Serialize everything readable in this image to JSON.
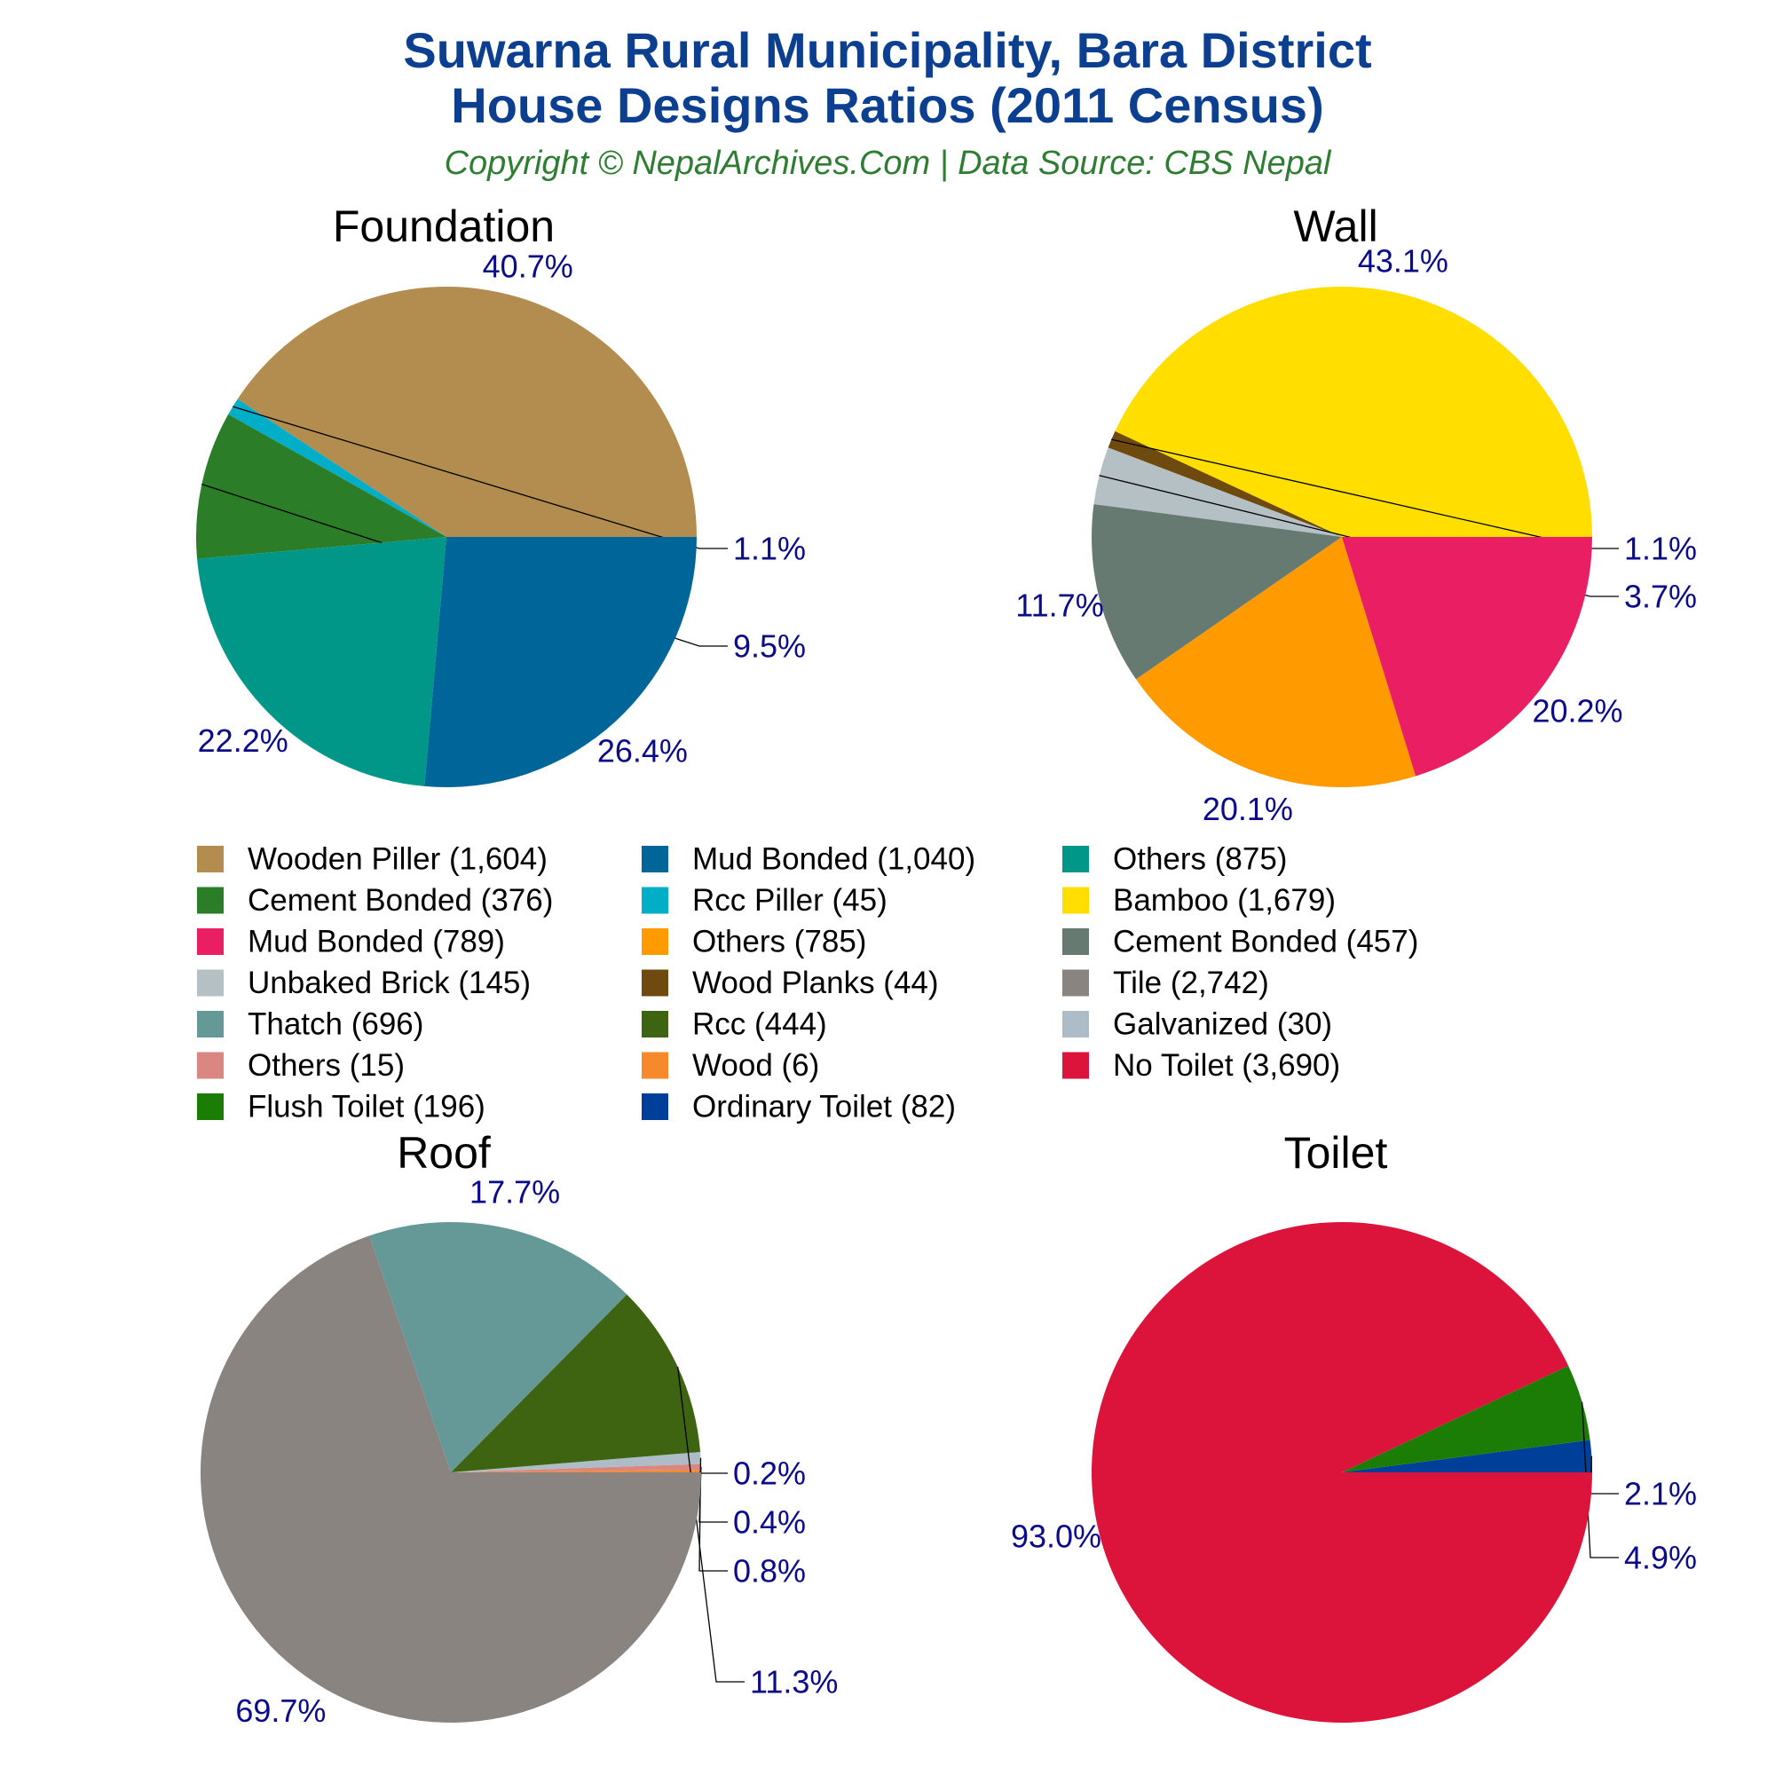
{
  "title_line1": "Suwarna Rural Municipality, Bara District",
  "title_line2": "House Designs Ratios (2011 Census)",
  "subtitle": "Copyright © NepalArchives.Com | Data Source: CBS Nepal",
  "colors": {
    "title": "#0d3f91",
    "subtitle": "#2e7d32",
    "label": "#0b0b8a"
  },
  "chart_data": [
    {
      "type": "pie",
      "title": "Foundation",
      "slices": [
        {
          "name": "Wooden Piller",
          "value": 1604,
          "label": "40.7%",
          "color": "#b38d4f"
        },
        {
          "name": "Rcc Piller",
          "value": 45,
          "label": "1.1%",
          "color": "#00aec8"
        },
        {
          "name": "Cement Bonded",
          "value": 376,
          "label": "9.5%",
          "color": "#2b7d28"
        },
        {
          "name": "Others",
          "value": 875,
          "label": "22.2%",
          "color": "#009788"
        },
        {
          "name": "Mud Bonded",
          "value": 1040,
          "label": "26.4%",
          "color": "#006699"
        }
      ]
    },
    {
      "type": "pie",
      "title": "Wall",
      "slices": [
        {
          "name": "Bamboo",
          "value": 1679,
          "label": "43.1%",
          "color": "#ffde00"
        },
        {
          "name": "Wood Planks",
          "value": 44,
          "label": "1.1%",
          "color": "#6e4a0e"
        },
        {
          "name": "Unbaked Brick",
          "value": 145,
          "label": "3.7%",
          "color": "#b5c0c4"
        },
        {
          "name": "Cement Bonded",
          "value": 457,
          "label": "11.7%",
          "color": "#677a72"
        },
        {
          "name": "Others",
          "value": 785,
          "label": "20.1%",
          "color": "#ff9a00"
        },
        {
          "name": "Mud Bonded",
          "value": 789,
          "label": "20.2%",
          "color": "#e91e63"
        }
      ]
    },
    {
      "type": "pie",
      "title": "Roof",
      "slices": [
        {
          "name": "Wood",
          "value": 6,
          "label": "0.2%",
          "color": "#f5892b"
        },
        {
          "name": "Others",
          "value": 15,
          "label": "0.4%",
          "color": "#d98780"
        },
        {
          "name": "Galvanized",
          "value": 30,
          "label": "0.8%",
          "color": "#adbcc6"
        },
        {
          "name": "Rcc",
          "value": 444,
          "label": "11.3%",
          "color": "#3e6411"
        },
        {
          "name": "Thatch",
          "value": 696,
          "label": "17.7%",
          "color": "#659998"
        },
        {
          "name": "Tile",
          "value": 2742,
          "label": "69.7%",
          "color": "#8a8480"
        }
      ]
    },
    {
      "type": "pie",
      "title": "Toilet",
      "slices": [
        {
          "name": "Ordinary Toilet",
          "value": 82,
          "label": "2.1%",
          "color": "#003f99"
        },
        {
          "name": "Flush Toilet",
          "value": 196,
          "label": "4.9%",
          "color": "#1b7d05"
        },
        {
          "name": "No Toilet",
          "value": 3690,
          "label": "93.0%",
          "color": "#dc143c"
        }
      ]
    }
  ],
  "legend": [
    {
      "label": "Wooden Piller (1,604)",
      "color": "#b38d4f"
    },
    {
      "label": "Mud Bonded (1,040)",
      "color": "#006699"
    },
    {
      "label": "Others (875)",
      "color": "#009788"
    },
    {
      "label": "Cement Bonded (376)",
      "color": "#2b7d28"
    },
    {
      "label": "Rcc Piller (45)",
      "color": "#00aec8"
    },
    {
      "label": "Bamboo (1,679)",
      "color": "#ffde00"
    },
    {
      "label": "Mud Bonded (789)",
      "color": "#e91e63"
    },
    {
      "label": "Others (785)",
      "color": "#ff9a00"
    },
    {
      "label": "Cement Bonded (457)",
      "color": "#677a72"
    },
    {
      "label": "Unbaked Brick (145)",
      "color": "#b5c0c4"
    },
    {
      "label": "Wood Planks (44)",
      "color": "#6e4a0e"
    },
    {
      "label": "Tile (2,742)",
      "color": "#8a8480"
    },
    {
      "label": "Thatch (696)",
      "color": "#659998"
    },
    {
      "label": "Rcc (444)",
      "color": "#3e6411"
    },
    {
      "label": "Galvanized (30)",
      "color": "#adbcc6"
    },
    {
      "label": "Others (15)",
      "color": "#d98780"
    },
    {
      "label": "Wood (6)",
      "color": "#f5892b"
    },
    {
      "label": "No Toilet (3,690)",
      "color": "#dc143c"
    },
    {
      "label": "Flush Toilet (196)",
      "color": "#1b7d05"
    },
    {
      "label": "Ordinary Toilet (82)",
      "color": "#003f99"
    }
  ]
}
